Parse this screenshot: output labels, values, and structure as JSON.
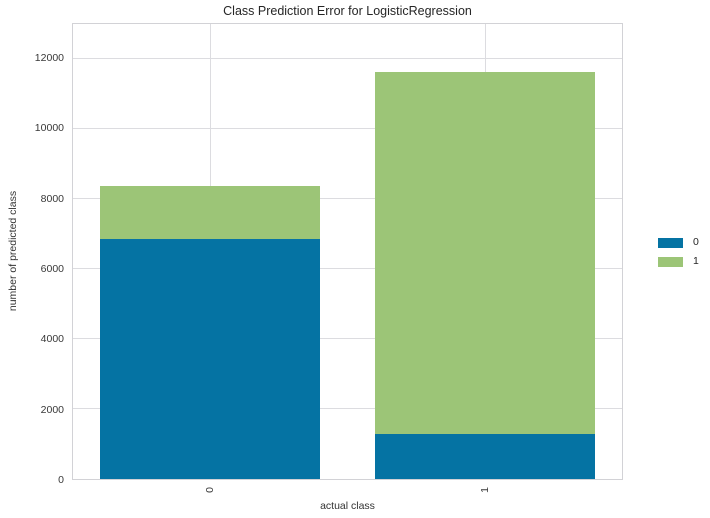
{
  "chart_data": {
    "type": "bar",
    "stacked": true,
    "title": "Class Prediction Error for LogisticRegression",
    "xlabel": "actual class",
    "ylabel": "number of predicted class",
    "categories": [
      "0",
      "1"
    ],
    "series": [
      {
        "name": "0",
        "color": "#0573a3",
        "values": [
          6860,
          1280
        ]
      },
      {
        "name": "1",
        "color": "#9cc577",
        "values": [
          1520,
          10340
        ]
      }
    ],
    "totals": [
      8380,
      11620
    ],
    "yticks": [
      0,
      2000,
      4000,
      6000,
      8000,
      10000,
      12000
    ],
    "ylim": [
      0,
      13000
    ],
    "grid": true,
    "legend_position": "right",
    "bar_width_fraction": 0.8,
    "colors": {
      "grid": "#dcdce0",
      "frame": "#d2d2d6",
      "background": "#ffffff",
      "text": "#262626"
    }
  }
}
